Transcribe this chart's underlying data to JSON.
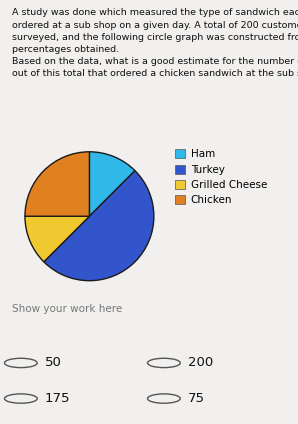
{
  "title_text": "A study was done which measured the type of sandwich each customer\nordered at a sub shop on a given day. A total of 200 customers were\nsurveyed, and the following circle graph was constructed from the\npercentages obtained.\nBased on the data, what is a good estimate for the number of customers\nout of this total that ordered a chicken sandwich at the sub shop?",
  "slices": [
    {
      "label": "Ham",
      "pct": 12.5,
      "color": "#30B8E8"
    },
    {
      "label": "Turkey",
      "pct": 50.0,
      "color": "#3355CC"
    },
    {
      "label": "Grilled Cheese",
      "pct": 12.5,
      "color": "#F0C830"
    },
    {
      "label": "Chicken",
      "pct": 25.0,
      "color": "#E08020"
    }
  ],
  "startangle": 90,
  "show_work_label": "Show your work here",
  "answers": [
    "50",
    "200",
    "175",
    "75"
  ],
  "background_color": "#f2f0ee",
  "pie_edge_color": "#1a1a1a",
  "pie_linewidth": 1.0,
  "title_fontsize": 6.8,
  "legend_fontsize": 7.5,
  "answer_fontsize": 9.5,
  "show_work_fontsize": 7.5
}
